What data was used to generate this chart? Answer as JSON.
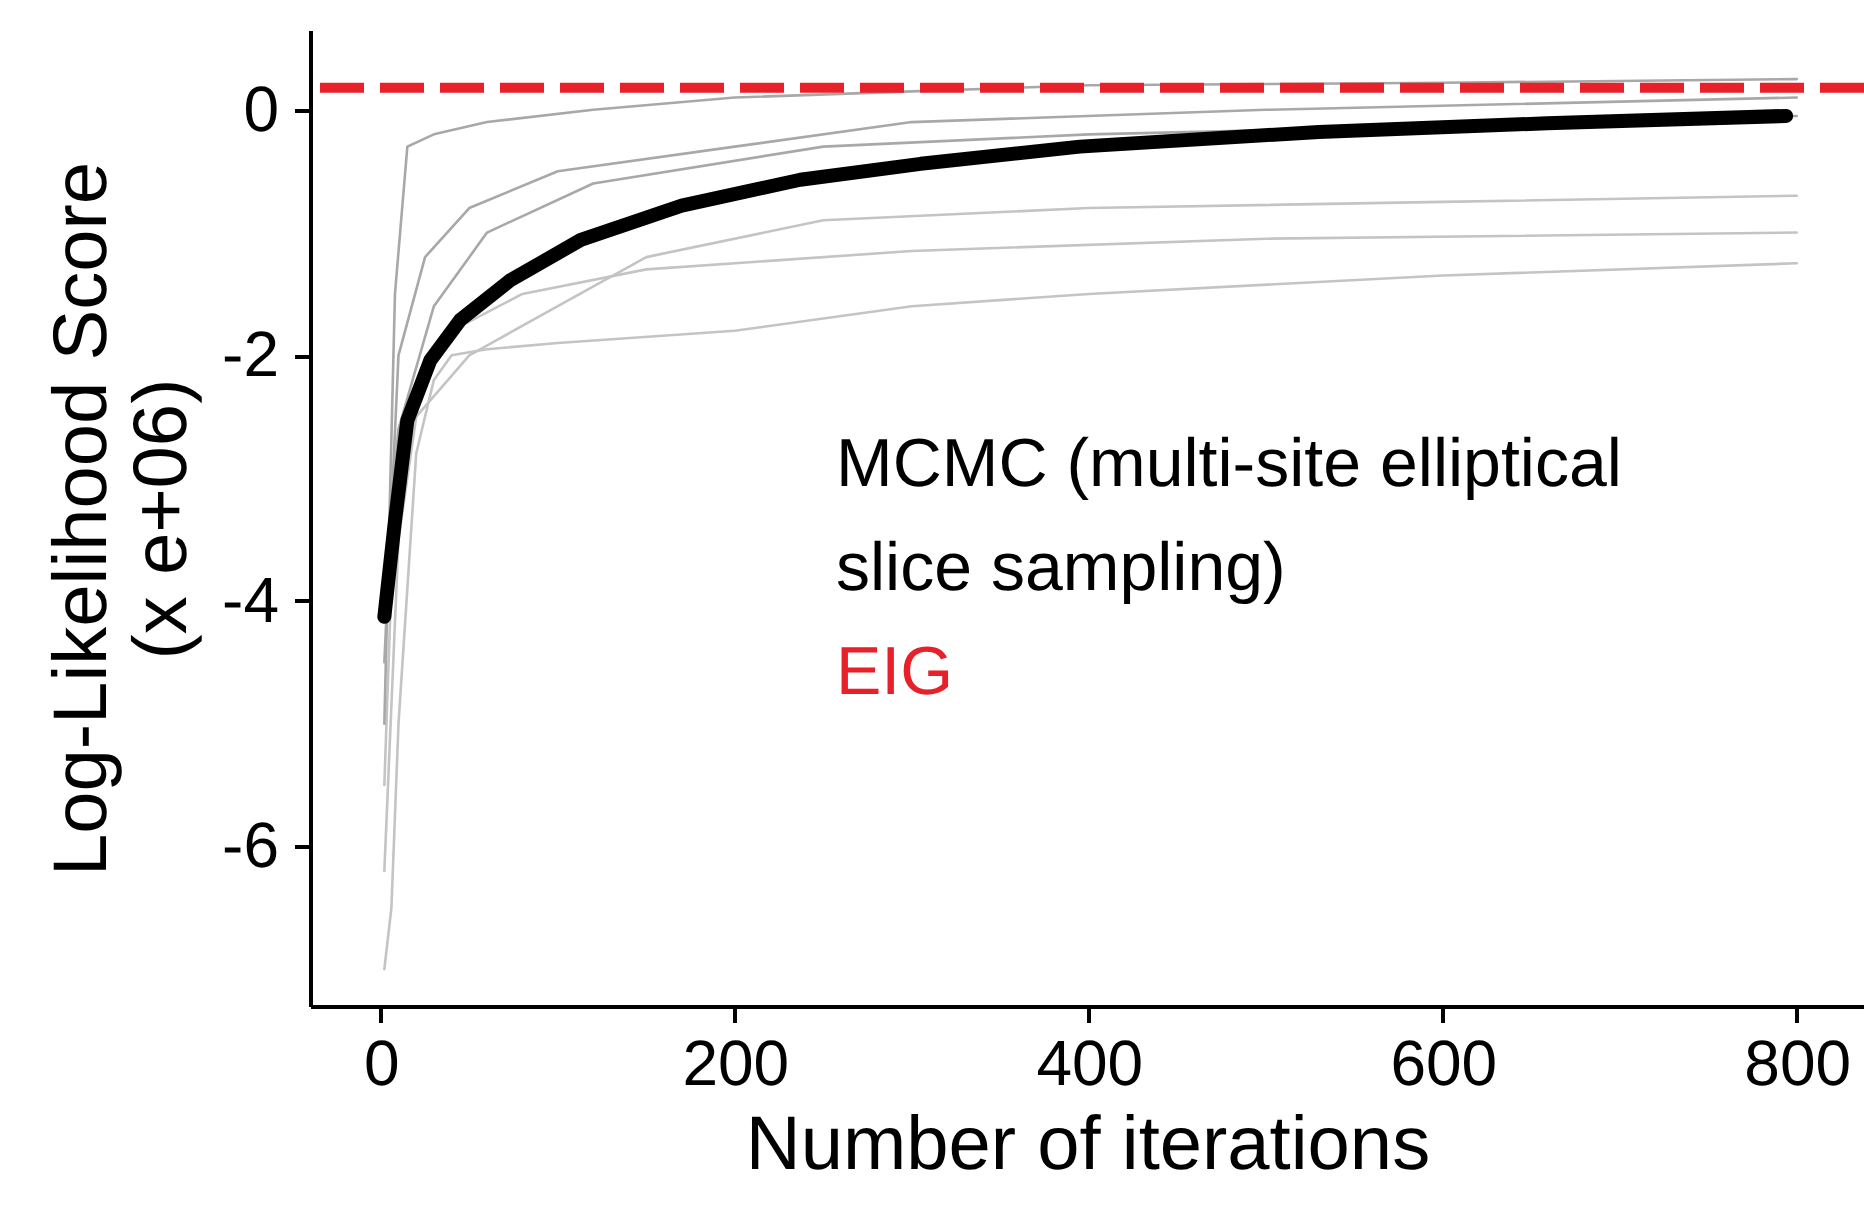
{
  "chart_data": {
    "type": "line",
    "xlabel": "Number of iterations",
    "ylabel": "Log-Likelihood Score\n(x e+06)",
    "xlim": [
      -40,
      838
    ],
    "xticks": [
      0,
      200,
      400,
      600,
      800
    ],
    "ylim": [
      -7.3,
      0.65
    ],
    "yticks": [
      -6,
      -4,
      -2,
      0
    ],
    "grid": false,
    "series": [
      {
        "color": "#c4c4c4",
        "x": [
          2,
          6,
          10,
          20,
          30,
          40,
          60,
          100,
          200,
          300,
          400,
          600,
          800
        ],
        "values": [
          -7.0,
          -6.5,
          -5.0,
          -2.8,
          -2.2,
          -2.0,
          -1.95,
          -1.9,
          -1.8,
          -1.6,
          -1.5,
          -1.35,
          -1.25
        ]
      },
      {
        "color": "#c4c4c4",
        "x": [
          2,
          10,
          20,
          50,
          100,
          150,
          250,
          400,
          600,
          800
        ],
        "values": [
          -6.2,
          -3.5,
          -2.5,
          -2.0,
          -1.6,
          -1.2,
          -0.9,
          -0.8,
          -0.75,
          -0.7
        ]
      },
      {
        "color": "#c4c4c4",
        "x": [
          2,
          8,
          20,
          40,
          80,
          150,
          300,
          500,
          800
        ],
        "values": [
          -5.5,
          -3.0,
          -2.3,
          -1.8,
          -1.5,
          -1.3,
          -1.15,
          -1.05,
          -1.0
        ]
      },
      {
        "color": "#a8a8a8",
        "x": [
          2,
          10,
          30,
          60,
          120,
          250,
          400,
          700,
          800
        ],
        "values": [
          -3.8,
          -2.6,
          -1.6,
          -1.0,
          -0.6,
          -0.3,
          -0.2,
          -0.1,
          -0.05
        ]
      },
      {
        "color": "#a8a8a8",
        "x": [
          2,
          10,
          25,
          50,
          100,
          200,
          300,
          500,
          800
        ],
        "values": [
          -4.5,
          -2.0,
          -1.2,
          -0.8,
          -0.5,
          -0.3,
          -0.1,
          0.0,
          0.1
        ]
      },
      {
        "color": "#a8a8a8",
        "x": [
          2,
          8,
          15,
          30,
          60,
          120,
          200,
          300,
          400,
          600,
          800
        ],
        "values": [
          -5.0,
          -1.5,
          -0.3,
          -0.2,
          -0.1,
          0.0,
          0.1,
          0.15,
          0.2,
          0.22,
          0.25
        ]
      },
      {
        "name": "MCMC (multi-site elliptical slice sampling)",
        "color": "#000000",
        "x": [
          2,
          8,
          15,
          28,
          45,
          73,
          113,
          170,
          237,
          305,
          395,
          530,
          659,
          794
        ],
        "values": [
          -4.13,
          -3.35,
          -2.53,
          -2.04,
          -1.71,
          -1.39,
          -1.06,
          -0.78,
          -0.57,
          -0.44,
          -0.3,
          -0.18,
          -0.11,
          -0.05
        ]
      }
    ],
    "ref_lines": [
      {
        "axis": "y",
        "value": 0.18,
        "label": "EIG",
        "color": "#e8202a",
        "line_style": "dashed"
      }
    ]
  }
}
